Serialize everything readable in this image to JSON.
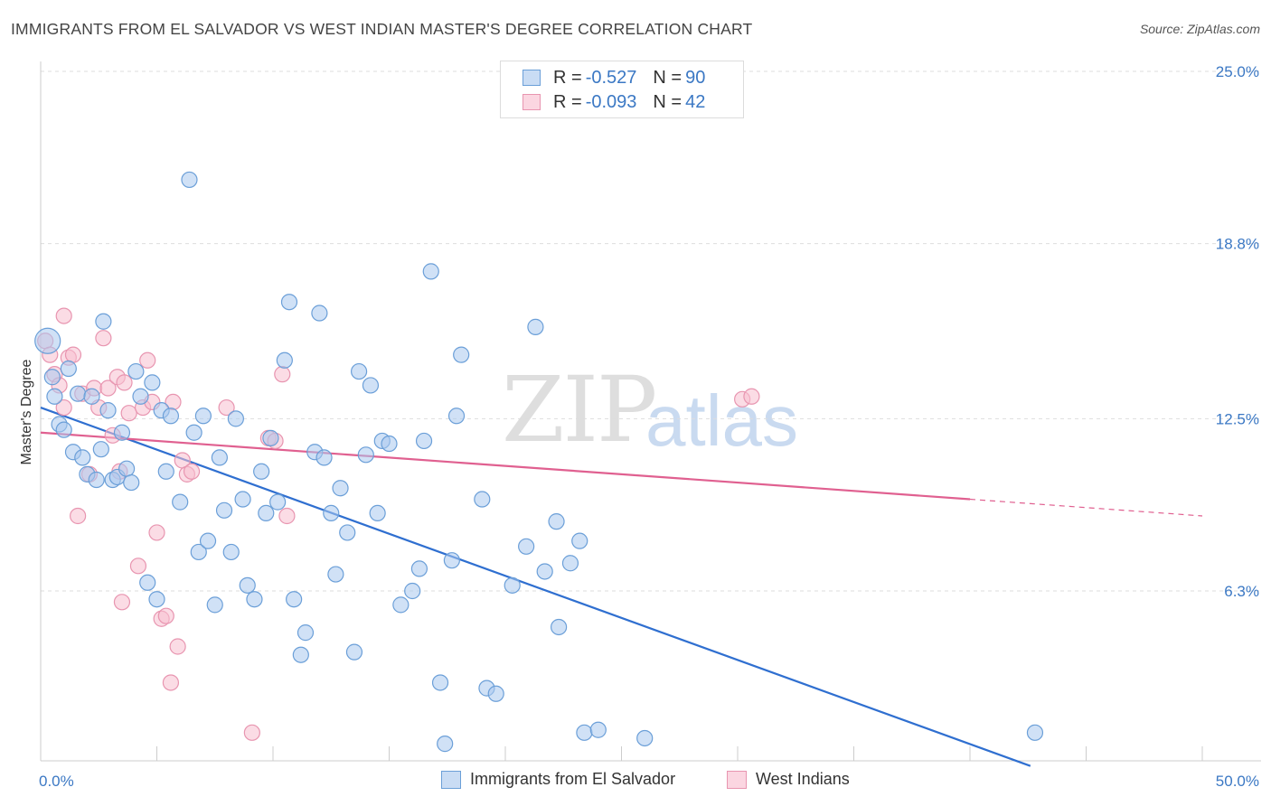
{
  "title": "IMMIGRANTS FROM EL SALVADOR VS WEST INDIAN MASTER'S DEGREE CORRELATION CHART",
  "source": "Source: ZipAtlas.com",
  "watermark": {
    "zip": "ZIP",
    "atlas": "atlas"
  },
  "legend": {
    "rows": [
      {
        "r_label": "R =",
        "r_value": "-0.527",
        "n_label": "N =",
        "n_value": "90"
      },
      {
        "r_label": "R =",
        "r_value": "-0.093",
        "n_label": "N =",
        "n_value": "42"
      }
    ]
  },
  "colors": {
    "blue_fill": "#aac8ee",
    "blue_stroke": "#6b9fd8",
    "blue_line": "#2f6fd0",
    "pink_fill": "#f7c0d0",
    "pink_stroke": "#e895b0",
    "pink_line": "#e06090",
    "tick": "#3b78c4",
    "grid": "#dddddd"
  },
  "chart_data": {
    "type": "scatter",
    "xlabel": "",
    "ylabel": "Master's Degree",
    "xlim": [
      0,
      50
    ],
    "ylim": [
      0,
      26
    ],
    "x_tick_labels": [
      "0.0%",
      "50.0%"
    ],
    "y_ticks": [
      6.3,
      12.5,
      18.8,
      25.0
    ],
    "y_tick_labels": [
      "6.3%",
      "12.5%",
      "18.8%",
      "25.0%"
    ],
    "grid": true,
    "legend_position": "top-center",
    "series": [
      {
        "name": "Immigrants from El Salvador",
        "color": "#aac8ee",
        "points": [
          [
            0.3,
            15.3
          ],
          [
            0.5,
            14.0
          ],
          [
            0.6,
            13.3
          ],
          [
            0.8,
            12.3
          ],
          [
            1.0,
            12.1
          ],
          [
            1.2,
            14.3
          ],
          [
            1.4,
            11.3
          ],
          [
            1.6,
            13.4
          ],
          [
            1.8,
            11.1
          ],
          [
            2.0,
            10.5
          ],
          [
            2.2,
            13.3
          ],
          [
            2.4,
            10.3
          ],
          [
            2.6,
            11.4
          ],
          [
            2.7,
            16.0
          ],
          [
            2.9,
            12.8
          ],
          [
            3.1,
            10.3
          ],
          [
            3.3,
            10.4
          ],
          [
            3.5,
            12.0
          ],
          [
            3.7,
            10.7
          ],
          [
            3.9,
            10.2
          ],
          [
            4.1,
            14.2
          ],
          [
            4.3,
            13.3
          ],
          [
            4.6,
            6.6
          ],
          [
            4.8,
            13.8
          ],
          [
            5.0,
            6.0
          ],
          [
            5.2,
            12.8
          ],
          [
            5.4,
            10.6
          ],
          [
            5.6,
            12.6
          ],
          [
            6.0,
            9.5
          ],
          [
            6.4,
            21.1
          ],
          [
            6.6,
            12.0
          ],
          [
            6.8,
            7.7
          ],
          [
            7.0,
            12.6
          ],
          [
            7.2,
            8.1
          ],
          [
            7.5,
            5.8
          ],
          [
            7.7,
            11.1
          ],
          [
            7.9,
            9.2
          ],
          [
            8.2,
            7.7
          ],
          [
            8.4,
            12.5
          ],
          [
            8.7,
            9.6
          ],
          [
            8.9,
            6.5
          ],
          [
            9.2,
            6.0
          ],
          [
            9.5,
            10.6
          ],
          [
            9.7,
            9.1
          ],
          [
            9.9,
            11.8
          ],
          [
            10.2,
            9.5
          ],
          [
            10.5,
            14.6
          ],
          [
            10.7,
            16.7
          ],
          [
            10.9,
            6.0
          ],
          [
            11.2,
            4.0
          ],
          [
            11.4,
            4.8
          ],
          [
            11.8,
            11.3
          ],
          [
            12.0,
            16.3
          ],
          [
            12.2,
            11.1
          ],
          [
            12.5,
            9.1
          ],
          [
            12.7,
            6.9
          ],
          [
            12.9,
            10.0
          ],
          [
            13.2,
            8.4
          ],
          [
            13.5,
            4.1
          ],
          [
            13.7,
            14.2
          ],
          [
            14.0,
            11.2
          ],
          [
            14.2,
            13.7
          ],
          [
            14.5,
            9.1
          ],
          [
            14.7,
            11.7
          ],
          [
            15.0,
            11.6
          ],
          [
            15.5,
            5.8
          ],
          [
            16.0,
            6.3
          ],
          [
            16.3,
            7.1
          ],
          [
            16.5,
            11.7
          ],
          [
            16.8,
            17.8
          ],
          [
            17.2,
            3.0
          ],
          [
            17.4,
            0.8
          ],
          [
            17.7,
            7.4
          ],
          [
            17.9,
            12.6
          ],
          [
            18.1,
            14.8
          ],
          [
            19.0,
            9.6
          ],
          [
            19.2,
            2.8
          ],
          [
            19.6,
            2.6
          ],
          [
            20.3,
            6.5
          ],
          [
            20.9,
            7.9
          ],
          [
            21.3,
            15.8
          ],
          [
            21.7,
            7.0
          ],
          [
            22.2,
            8.8
          ],
          [
            22.3,
            5.0
          ],
          [
            22.8,
            7.3
          ],
          [
            23.2,
            8.1
          ],
          [
            23.4,
            1.2
          ],
          [
            24.0,
            1.3
          ],
          [
            26.0,
            1.0
          ],
          [
            42.8,
            1.2
          ]
        ]
      },
      {
        "name": "West Indians",
        "color": "#f7c0d0",
        "points": [
          [
            0.2,
            15.3
          ],
          [
            0.4,
            14.8
          ],
          [
            0.6,
            14.1
          ],
          [
            0.8,
            13.7
          ],
          [
            1.0,
            12.9
          ],
          [
            1.0,
            16.2
          ],
          [
            1.2,
            14.7
          ],
          [
            1.4,
            14.8
          ],
          [
            1.6,
            9.0
          ],
          [
            1.8,
            13.4
          ],
          [
            2.1,
            10.5
          ],
          [
            2.3,
            13.6
          ],
          [
            2.5,
            12.9
          ],
          [
            2.7,
            15.4
          ],
          [
            2.9,
            13.6
          ],
          [
            3.1,
            11.9
          ],
          [
            3.3,
            14.0
          ],
          [
            3.4,
            10.6
          ],
          [
            3.5,
            5.9
          ],
          [
            3.6,
            13.8
          ],
          [
            3.8,
            12.7
          ],
          [
            4.2,
            7.2
          ],
          [
            4.4,
            12.9
          ],
          [
            4.6,
            14.6
          ],
          [
            4.8,
            13.1
          ],
          [
            5.0,
            8.4
          ],
          [
            5.2,
            5.3
          ],
          [
            5.4,
            5.4
          ],
          [
            5.6,
            3.0
          ],
          [
            5.7,
            13.1
          ],
          [
            5.9,
            4.3
          ],
          [
            6.1,
            11.0
          ],
          [
            6.3,
            10.5
          ],
          [
            6.5,
            10.6
          ],
          [
            8.0,
            12.9
          ],
          [
            9.1,
            1.2
          ],
          [
            9.8,
            11.8
          ],
          [
            10.1,
            11.7
          ],
          [
            10.4,
            14.1
          ],
          [
            10.6,
            9.0
          ],
          [
            30.2,
            13.2
          ],
          [
            30.6,
            13.3
          ]
        ]
      }
    ],
    "trend_lines": [
      {
        "series": "Immigrants from El Salvador",
        "x": [
          0,
          42.6
        ],
        "y": [
          12.9,
          0
        ],
        "dashed_to": null
      },
      {
        "series": "West Indians",
        "x": [
          0,
          40.0
        ],
        "y": [
          12.0,
          9.6
        ],
        "dashed_to": [
          50.0,
          9.0
        ]
      }
    ]
  }
}
